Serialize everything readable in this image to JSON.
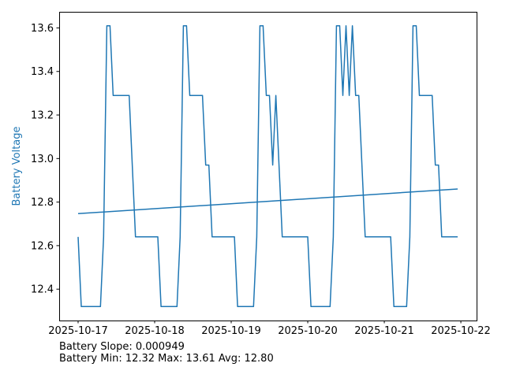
{
  "chart_data": {
    "type": "line",
    "title": "",
    "xlabel": "",
    "ylabel": "Battery Voltage",
    "ylabel_color": "#1f77b4",
    "line_color": "#1f77b4",
    "grid": false,
    "xlim": [
      "2025-10-16 18:04",
      "2025-10-22 04:56"
    ],
    "ylim": [
      12.256,
      13.674
    ],
    "x_ticks": [
      "2025-10-17",
      "2025-10-18",
      "2025-10-19",
      "2025-10-20",
      "2025-10-21",
      "2025-10-22"
    ],
    "y_ticks": [
      "12.4",
      "12.6",
      "12.8",
      "13.0",
      "13.2",
      "13.4",
      "13.6"
    ],
    "series": [
      {
        "x": [
          "2025-10-17 00:00",
          "2025-10-17 01:00",
          "2025-10-17 07:00",
          "2025-10-17 08:00",
          "2025-10-17 09:00",
          "2025-10-17 10:00",
          "2025-10-17 11:00",
          "2025-10-17 16:00",
          "2025-10-17 18:00",
          "2025-10-18 01:00",
          "2025-10-18 02:00",
          "2025-10-18 07:00",
          "2025-10-18 08:00",
          "2025-10-18 09:00",
          "2025-10-18 10:00",
          "2025-10-18 11:00",
          "2025-10-18 15:00",
          "2025-10-18 16:00",
          "2025-10-18 17:00",
          "2025-10-18 18:00",
          "2025-10-19 01:00",
          "2025-10-19 02:00",
          "2025-10-19 07:00",
          "2025-10-19 08:00",
          "2025-10-19 09:00",
          "2025-10-19 10:00",
          "2025-10-19 11:00",
          "2025-10-19 12:00",
          "2025-10-19 13:00",
          "2025-10-19 14:00",
          "2025-10-19 16:00",
          "2025-10-20 00:00",
          "2025-10-20 01:00",
          "2025-10-20 07:00",
          "2025-10-20 08:00",
          "2025-10-20 09:00",
          "2025-10-20 10:00",
          "2025-10-20 11:00",
          "2025-10-20 12:00",
          "2025-10-20 13:00",
          "2025-10-20 14:00",
          "2025-10-20 15:00",
          "2025-10-20 16:00",
          "2025-10-20 18:00",
          "2025-10-21 02:00",
          "2025-10-21 03:00",
          "2025-10-21 07:00",
          "2025-10-21 08:00",
          "2025-10-21 09:00",
          "2025-10-21 10:00",
          "2025-10-21 11:00",
          "2025-10-21 15:00",
          "2025-10-21 16:00",
          "2025-10-21 17:00",
          "2025-10-21 18:00",
          "2025-10-21 23:00"
        ],
        "y": [
          12.64,
          12.32,
          12.32,
          12.64,
          13.61,
          13.61,
          13.29,
          13.29,
          12.64,
          12.64,
          12.32,
          12.32,
          12.64,
          13.61,
          13.61,
          13.29,
          13.29,
          12.97,
          12.97,
          12.64,
          12.64,
          12.32,
          12.32,
          12.64,
          13.61,
          13.61,
          13.29,
          13.29,
          12.97,
          13.29,
          12.64,
          12.64,
          12.32,
          12.32,
          12.64,
          13.61,
          13.61,
          13.29,
          13.61,
          13.29,
          13.61,
          13.29,
          13.29,
          12.64,
          12.64,
          12.32,
          12.32,
          12.64,
          13.61,
          13.61,
          13.29,
          13.29,
          12.97,
          12.97,
          12.64,
          12.64
        ]
      },
      {
        "x": [
          "2025-10-17 00:00",
          "2025-10-21 23:00"
        ],
        "y": [
          12.747,
          12.86
        ]
      }
    ]
  },
  "stats": {
    "slope_line": "Battery Slope: 0.000949",
    "minmax_line": "Battery Min: 12.32 Max: 13.61 Avg: 12.80"
  }
}
